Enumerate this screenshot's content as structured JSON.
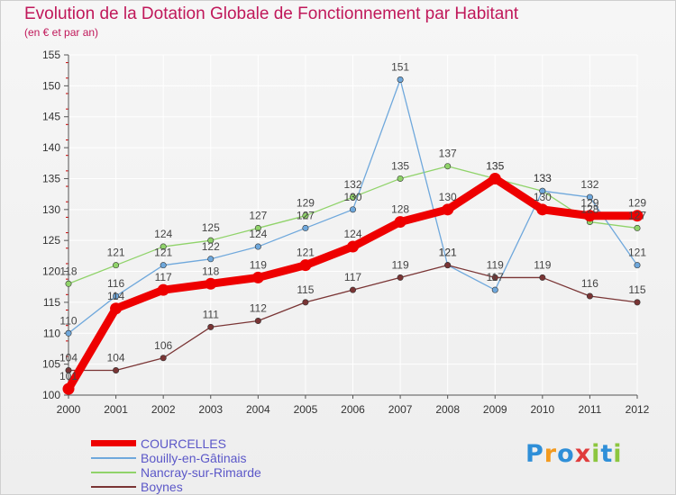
{
  "title": "Evolution de la Dotation Globale de Fonctionnement par Habitant",
  "subtitle": "(en € et par an)",
  "logo_text": "Proxiti",
  "colors": {
    "title": "#c0185a",
    "axis": "#555555",
    "tick_marks": "#cc0000",
    "grid": "#ffffff",
    "legend_text": "#5b57c8"
  },
  "chart_data": {
    "type": "line",
    "title": "Evolution de la Dotation Globale de Fonctionnement par Habitant",
    "subtitle": "(en € et par an)",
    "xlabel": "",
    "ylabel": "",
    "ylim": [
      100,
      155
    ],
    "yticks": [
      100,
      105,
      110,
      115,
      120,
      125,
      130,
      135,
      140,
      145,
      150,
      155
    ],
    "categories": [
      "2000",
      "2001",
      "2002",
      "2003",
      "2004",
      "2005",
      "2006",
      "2007",
      "2008",
      "2009",
      "2010",
      "2011",
      "2012"
    ],
    "grid": true,
    "legend_position": "bottom-left",
    "series": [
      {
        "name": "Nancray-sur-Rimarde",
        "color": "#90d36a",
        "values": [
          118,
          121,
          124,
          125,
          127,
          129,
          132,
          135,
          137,
          135,
          133,
          128,
          127
        ]
      },
      {
        "name": "Bouilly-en-Gâtinais",
        "color": "#6fa8dc",
        "values": [
          110,
          116,
          121,
          122,
          124,
          127,
          130,
          151,
          121,
          117,
          133,
          132,
          121
        ]
      },
      {
        "name": "Boynes",
        "color": "#7a3535",
        "values": [
          104,
          104,
          106,
          111,
          112,
          115,
          117,
          119,
          121,
          119,
          119,
          116,
          115
        ]
      },
      {
        "name": "COURCELLES",
        "color": "#ee0000",
        "values": [
          101,
          114,
          117,
          118,
          119,
          121,
          124,
          128,
          130,
          135,
          130,
          129,
          129
        ]
      }
    ],
    "legend": [
      "COURCELLES",
      "Bouilly-en-Gâtinais",
      "Nancray-sur-Rimarde",
      "Boynes"
    ]
  }
}
